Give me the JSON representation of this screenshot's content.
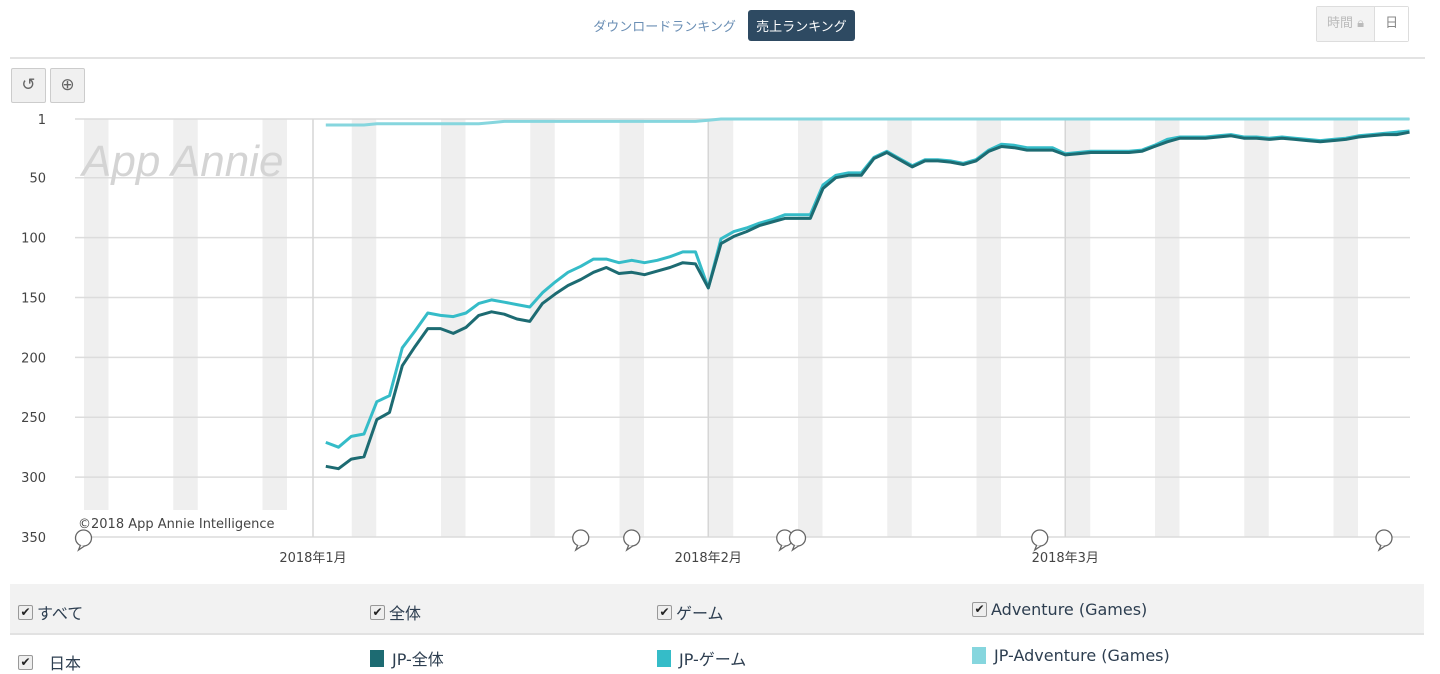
{
  "tabs": [
    {
      "label": "ダウンロードランキング",
      "active": false
    },
    {
      "label": "売上ランキング",
      "active": true
    }
  ],
  "granularity": {
    "hourly": "時間",
    "hourly_icon": "lock-icon",
    "daily": "日"
  },
  "toolbar": {
    "reset_icon": "undo-icon",
    "zoom_icon": "zoom-in-icon"
  },
  "watermark": "App Annie",
  "copyright": "©2018 App Annie Intelligence",
  "legend": {
    "filters": [
      {
        "label": "すべて",
        "checked": true
      },
      {
        "label": "全体",
        "checked": true
      },
      {
        "label": "ゲーム",
        "checked": true
      },
      {
        "label": "Adventure (Games)",
        "checked": true
      }
    ],
    "country": {
      "label": "日本",
      "checked": true
    },
    "series": [
      {
        "label": "JP-全体",
        "color": "#1d6b72"
      },
      {
        "label": "JP-ゲーム",
        "color": "#35bcc8"
      },
      {
        "label": "JP-Adventure (Games)",
        "color": "#86d6de"
      }
    ]
  },
  "chart_data": {
    "type": "line",
    "y_reversed": true,
    "ylim": [
      1,
      350
    ],
    "yticks": [
      "1",
      "50",
      "100",
      "150",
      "200",
      "250",
      "300",
      "350"
    ],
    "xticks": [
      {
        "label": "2018年1月",
        "date": "2018-01-01"
      },
      {
        "label": "2018年2月",
        "date": "2018-02-01"
      },
      {
        "label": "2018年3月",
        "date": "2018-03-01"
      }
    ],
    "grid": true,
    "weekend_shading": true,
    "legend_position": "bottom",
    "note_markers": [
      "2017-12-14",
      "2018-01-22",
      "2018-01-26",
      "2018-02-07",
      "2018-02-08",
      "2018-02-27",
      "2018-03-26"
    ],
    "x": [
      "2018-01-02",
      "2018-01-03",
      "2018-01-04",
      "2018-01-05",
      "2018-01-06",
      "2018-01-07",
      "2018-01-08",
      "2018-01-09",
      "2018-01-10",
      "2018-01-11",
      "2018-01-12",
      "2018-01-13",
      "2018-01-14",
      "2018-01-15",
      "2018-01-16",
      "2018-01-17",
      "2018-01-18",
      "2018-01-19",
      "2018-01-20",
      "2018-01-21",
      "2018-01-22",
      "2018-01-23",
      "2018-01-24",
      "2018-01-25",
      "2018-01-26",
      "2018-01-27",
      "2018-01-28",
      "2018-01-29",
      "2018-01-30",
      "2018-01-31",
      "2018-02-01",
      "2018-02-02",
      "2018-02-03",
      "2018-02-04",
      "2018-02-05",
      "2018-02-06",
      "2018-02-07",
      "2018-02-08",
      "2018-02-09",
      "2018-02-10",
      "2018-02-11",
      "2018-02-12",
      "2018-02-13",
      "2018-02-14",
      "2018-02-15",
      "2018-02-16",
      "2018-02-17",
      "2018-02-18",
      "2018-02-19",
      "2018-02-20",
      "2018-02-21",
      "2018-02-22",
      "2018-02-23",
      "2018-02-24",
      "2018-02-25",
      "2018-02-26",
      "2018-02-27",
      "2018-02-28",
      "2018-03-01",
      "2018-03-02",
      "2018-03-03",
      "2018-03-04",
      "2018-03-05",
      "2018-03-06",
      "2018-03-07",
      "2018-03-08",
      "2018-03-09",
      "2018-03-10",
      "2018-03-11",
      "2018-03-12",
      "2018-03-13",
      "2018-03-14",
      "2018-03-15",
      "2018-03-16",
      "2018-03-17",
      "2018-03-18",
      "2018-03-19",
      "2018-03-20",
      "2018-03-21",
      "2018-03-22",
      "2018-03-23",
      "2018-03-24",
      "2018-03-25",
      "2018-03-26",
      "2018-03-27",
      "2018-03-28"
    ],
    "series": [
      {
        "name": "JP-全体",
        "color": "#1d6b72",
        "values": [
          291,
          293,
          285,
          283,
          252,
          246,
          207,
          191,
          176,
          176,
          180,
          175,
          165,
          162,
          164,
          168,
          170,
          155,
          147,
          140,
          135,
          129,
          125,
          130,
          129,
          131,
          128,
          125,
          121,
          122,
          142,
          105,
          99,
          95,
          90,
          87,
          84,
          84,
          84,
          59,
          50,
          48,
          48,
          34,
          29,
          35,
          41,
          36,
          36,
          37,
          39,
          36,
          28,
          24,
          25,
          27,
          27,
          27,
          31,
          30,
          29,
          29,
          29,
          29,
          28,
          24,
          20,
          17,
          17,
          17,
          16,
          15,
          17,
          17,
          18,
          17,
          18,
          19,
          20,
          19,
          18,
          16,
          15,
          14,
          14,
          12
        ]
      },
      {
        "name": "JP-ゲーム",
        "color": "#35bcc8",
        "values": [
          271,
          275,
          266,
          264,
          237,
          232,
          192,
          178,
          163,
          165,
          166,
          163,
          155,
          152,
          154,
          156,
          158,
          146,
          137,
          129,
          124,
          118,
          118,
          121,
          119,
          121,
          119,
          116,
          112,
          112,
          142,
          101,
          95,
          92,
          88,
          85,
          81,
          81,
          81,
          56,
          48,
          46,
          46,
          33,
          28,
          34,
          40,
          35,
          35,
          36,
          38,
          35,
          27,
          22,
          23,
          25,
          25,
          25,
          30,
          29,
          28,
          28,
          28,
          28,
          27,
          23,
          18,
          16,
          16,
          16,
          15,
          14,
          16,
          16,
          17,
          16,
          17,
          18,
          19,
          18,
          17,
          15,
          14,
          13,
          12,
          11
        ]
      },
      {
        "name": "JP-Adventure (Games)",
        "color": "#86d6de",
        "values": [
          6,
          6,
          6,
          6,
          5,
          5,
          5,
          5,
          5,
          5,
          5,
          5,
          5,
          4,
          3,
          3,
          3,
          3,
          3,
          3,
          3,
          3,
          3,
          3,
          3,
          3,
          3,
          3,
          3,
          3,
          2,
          1,
          1,
          1,
          1,
          1,
          1,
          1,
          1,
          1,
          1,
          1,
          1,
          1,
          1,
          1,
          1,
          1,
          1,
          1,
          1,
          1,
          1,
          1,
          1,
          1,
          1,
          1,
          1,
          1,
          1,
          1,
          1,
          1,
          1,
          1,
          1,
          1,
          1,
          1,
          1,
          1,
          1,
          1,
          1,
          1,
          1,
          1,
          1,
          1,
          1,
          1,
          1,
          1,
          1,
          1
        ]
      }
    ]
  }
}
